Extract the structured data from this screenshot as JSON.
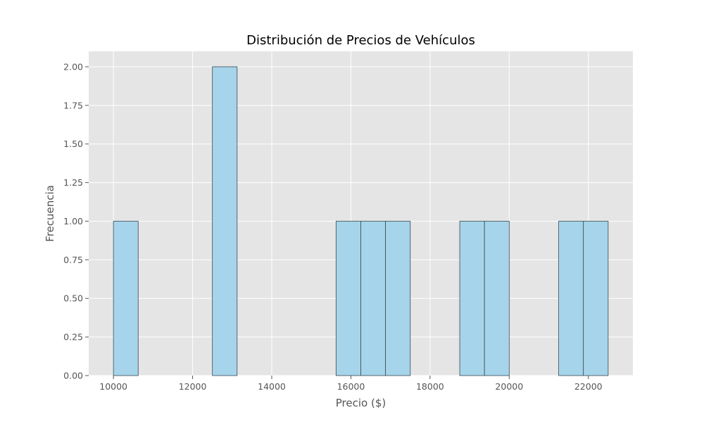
{
  "chart_data": {
    "type": "bar",
    "title": "Distribución de Precios de Vehículos",
    "xlabel": "Precio ($)",
    "ylabel": "Frecuencia",
    "xlim": [
      9375,
      23125
    ],
    "ylim": [
      0,
      2.1
    ],
    "grid": true,
    "bin_edges": [
      10000,
      10625,
      11250,
      11875,
      12500,
      13125,
      13750,
      14375,
      15000,
      15625,
      16250,
      16875,
      17500,
      18125,
      18750,
      19375,
      20000,
      20625,
      21250,
      21875,
      22500
    ],
    "values": [
      1,
      0,
      0,
      0,
      2,
      0,
      0,
      0,
      0,
      1,
      1,
      1,
      0,
      0,
      1,
      1,
      0,
      0,
      1,
      1
    ],
    "x_ticks": [
      10000,
      12000,
      14000,
      16000,
      18000,
      20000,
      22000
    ],
    "x_tick_labels": [
      "10000",
      "12000",
      "14000",
      "16000",
      "18000",
      "20000",
      "22000"
    ],
    "y_ticks": [
      0,
      0.25,
      0.5,
      0.75,
      1.0,
      1.25,
      1.5,
      1.75,
      2.0
    ],
    "y_tick_labels": [
      "0.00",
      "0.25",
      "0.50",
      "0.75",
      "1.00",
      "1.25",
      "1.50",
      "1.75",
      "2.00"
    ],
    "colors": {
      "plot_background": "#e5e5e5",
      "grid": "#ffffff",
      "bar_fill": "#a6d4ea",
      "bar_edge": "#3a4a52",
      "text": "#555555"
    }
  }
}
